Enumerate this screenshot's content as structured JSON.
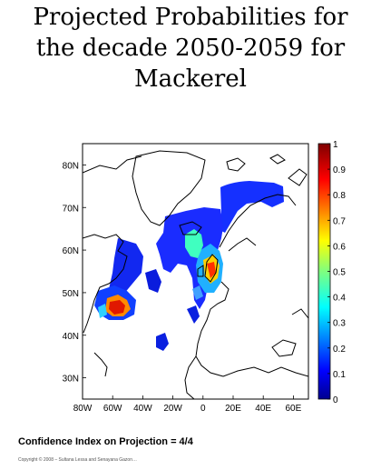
{
  "title": {
    "line1": "Projected Probabilities for",
    "line2": "the decade 2050-2059 for",
    "line3": "Mackerel"
  },
  "map": {
    "lat_ticks": [
      "30N",
      "40N",
      "50N",
      "60N",
      "70N",
      "80N"
    ],
    "lon_ticks": [
      "80W",
      "60W",
      "40W",
      "20W",
      "0",
      "20E",
      "40E",
      "60E"
    ],
    "lon_range": [
      -80,
      70
    ],
    "lat_range": [
      25,
      85
    ],
    "colors": {
      "land": "#ffffff",
      "coast": "#000000"
    }
  },
  "colorbar": {
    "ticks": [
      "0",
      "0.1",
      "0.2",
      "0.3",
      "0.4",
      "0.5",
      "0.6",
      "0.7",
      "0.8",
      "0.9",
      "1"
    ],
    "min": 0,
    "max": 1,
    "colormap": "jet"
  },
  "footer": {
    "confidence": "Confidence Index on Projection =  4/4",
    "copyright": "Copyright © 2008 – Sultana Lessa and Senayana Gazon…"
  }
}
